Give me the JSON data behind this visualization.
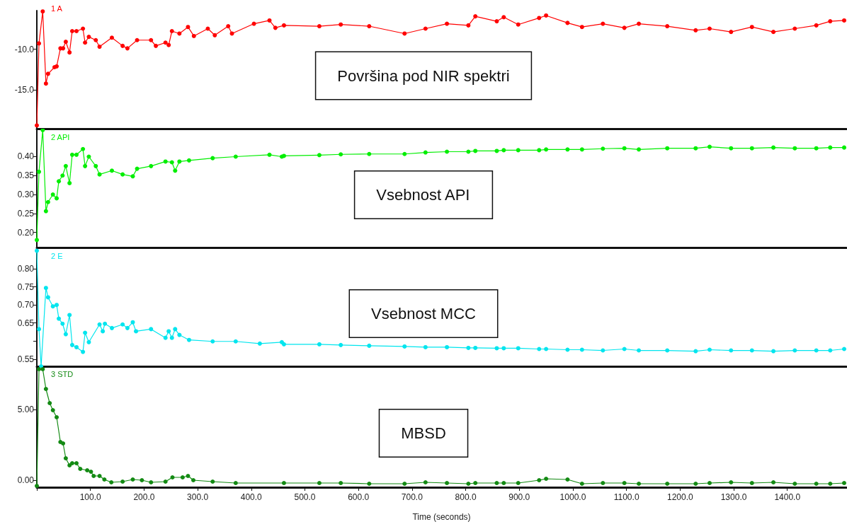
{
  "chart_data": [
    {
      "type": "line",
      "annotations": [
        "Površina pod NIR spektri"
      ],
      "legend": "top left",
      "marker": "circle",
      "tick_labels": "y",
      "x": [
        0,
        4,
        11,
        17,
        21,
        33,
        37,
        44,
        49,
        54,
        61,
        66,
        74,
        86,
        90,
        97,
        110,
        117,
        140,
        160,
        169,
        187,
        213,
        222,
        240,
        246,
        252,
        266,
        282,
        293,
        319,
        332,
        357,
        364,
        405,
        434,
        445,
        461,
        527,
        567,
        620,
        686,
        725,
        765,
        805,
        818,
        858,
        871,
        898,
        937,
        950,
        990,
        1017,
        1056,
        1096,
        1123,
        1176,
        1229,
        1255,
        1295,
        1334,
        1374,
        1414,
        1454,
        1480,
        1506
      ],
      "series": [
        {
          "name": "1 A",
          "color": "#ff0000",
          "values": [
            -19.3,
            -9.3,
            -5.4,
            -14.2,
            -13.0,
            -12.2,
            -12.1,
            -9.9,
            -9.9,
            -9.1,
            -10.4,
            -7.8,
            -7.8,
            -7.5,
            -9.2,
            -8.5,
            -8.9,
            -9.7,
            -8.6,
            -9.6,
            -9.9,
            -8.9,
            -8.9,
            -9.6,
            -9.2,
            -9.5,
            -7.8,
            -8.1,
            -7.3,
            -8.4,
            -7.5,
            -8.3,
            -7.2,
            -8.1,
            -6.9,
            -6.5,
            -7.4,
            -7.1,
            -7.2,
            -7.0,
            -7.2,
            -8.1,
            -7.5,
            -6.9,
            -7.1,
            -6.0,
            -6.6,
            -6.1,
            -7.0,
            -6.2,
            -5.9,
            -6.8,
            -7.3,
            -6.9,
            -7.4,
            -6.9,
            -7.2,
            -7.7,
            -7.5,
            -7.9,
            -7.3,
            -7.9,
            -7.5,
            -7.1,
            -6.6,
            -6.5
          ]
        }
      ],
      "xlim": [
        0,
        1510
      ],
      "ylim": [
        -19.7,
        -5.3
      ],
      "yticks": [
        {
          "value": -15,
          "label": "-15.0"
        },
        {
          "value": -10,
          "label": "-10.0"
        }
      ]
    },
    {
      "type": "line",
      "annotations": [
        "Vsebnost API"
      ],
      "legend": "top left",
      "marker": "circle",
      "tick_labels": "y",
      "x": [
        0,
        4,
        11,
        17,
        21,
        30,
        37,
        41,
        48,
        54,
        61,
        66,
        74,
        86,
        90,
        97,
        110,
        117,
        140,
        160,
        179,
        187,
        213,
        240,
        252,
        258,
        266,
        284,
        328,
        371,
        434,
        457,
        461,
        527,
        567,
        620,
        686,
        725,
        765,
        805,
        818,
        858,
        871,
        898,
        937,
        950,
        990,
        1017,
        1056,
        1096,
        1123,
        1176,
        1229,
        1255,
        1295,
        1334,
        1374,
        1414,
        1454,
        1480,
        1506
      ],
      "series": [
        {
          "name": "2 API",
          "color": "#00ee00",
          "values": [
            0.18,
            0.36,
            0.47,
            0.256,
            0.28,
            0.3,
            0.29,
            0.335,
            0.35,
            0.375,
            0.33,
            0.405,
            0.405,
            0.42,
            0.375,
            0.4,
            0.375,
            0.353,
            0.363,
            0.353,
            0.348,
            0.368,
            0.375,
            0.387,
            0.385,
            0.363,
            0.387,
            0.39,
            0.396,
            0.4,
            0.405,
            0.4,
            0.402,
            0.404,
            0.406,
            0.407,
            0.407,
            0.411,
            0.413,
            0.413,
            0.415,
            0.415,
            0.417,
            0.417,
            0.417,
            0.419,
            0.419,
            0.419,
            0.421,
            0.422,
            0.419,
            0.422,
            0.422,
            0.426,
            0.422,
            0.422,
            0.424,
            0.422,
            0.422,
            0.424,
            0.424
          ]
        }
      ],
      "xlim": [
        0,
        1510
      ],
      "ylim": [
        0.16,
        0.47
      ],
      "yticks": [
        {
          "value": 0.2,
          "label": "0.20"
        },
        {
          "value": 0.25,
          "label": "0.25"
        },
        {
          "value": 0.3,
          "label": "0.30"
        },
        {
          "value": 0.35,
          "label": "0.35"
        },
        {
          "value": 0.4,
          "label": "0.40"
        }
      ]
    },
    {
      "type": "line",
      "annotations": [
        "Vsebnost MCC"
      ],
      "legend": "top left",
      "marker": "circle",
      "tick_labels": "y",
      "x": [
        0,
        4,
        8,
        17,
        21,
        30,
        37,
        41,
        48,
        54,
        61,
        66,
        74,
        86,
        90,
        97,
        117,
        123,
        127,
        140,
        160,
        169,
        179,
        185,
        213,
        240,
        246,
        252,
        258,
        266,
        284,
        328,
        371,
        416,
        457,
        461,
        527,
        567,
        620,
        686,
        725,
        765,
        805,
        818,
        858,
        871,
        898,
        937,
        950,
        990,
        1017,
        1056,
        1096,
        1123,
        1176,
        1229,
        1255,
        1295,
        1334,
        1374,
        1414,
        1454,
        1480,
        1506
      ],
      "series": [
        {
          "name": "2 E",
          "color": "#00e5ee",
          "values": [
            0.85,
            0.633,
            0.53,
            0.747,
            0.721,
            0.696,
            0.7,
            0.662,
            0.648,
            0.619,
            0.672,
            0.589,
            0.583,
            0.57,
            0.623,
            0.597,
            0.646,
            0.627,
            0.648,
            0.636,
            0.646,
            0.636,
            0.652,
            0.627,
            0.633,
            0.609,
            0.627,
            0.609,
            0.633,
            0.617,
            0.603,
            0.599,
            0.599,
            0.593,
            0.597,
            0.591,
            0.591,
            0.589,
            0.587,
            0.585,
            0.583,
            0.583,
            0.581,
            0.581,
            0.58,
            0.58,
            0.58,
            0.578,
            0.578,
            0.576,
            0.576,
            0.574,
            0.578,
            0.574,
            0.574,
            0.572,
            0.576,
            0.574,
            0.574,
            0.572,
            0.574,
            0.574,
            0.574,
            0.578
          ]
        }
      ],
      "xlim": [
        0,
        1510
      ],
      "ylim": [
        0.53,
        0.855
      ],
      "yticks": [
        {
          "value": 0.55,
          "label": "0.55"
        },
        {
          "value": 0.6,
          "label": null
        },
        {
          "value": 0.65,
          "label": "0.65"
        },
        {
          "value": 0.7,
          "label": "0.70"
        },
        {
          "value": 0.75,
          "label": "0.75"
        },
        {
          "value": 0.8,
          "label": "0.80"
        }
      ]
    },
    {
      "type": "line",
      "annotations": [
        "MBSD"
      ],
      "legend": "top left",
      "marker": "circle",
      "xlabel": "Time (seconds)",
      "x": [
        0,
        4,
        11,
        17,
        24,
        30,
        37,
        44,
        49,
        54,
        61,
        66,
        74,
        81,
        94,
        101,
        106,
        117,
        126,
        139,
        160,
        179,
        196,
        213,
        240,
        253,
        272,
        282,
        292,
        328,
        371,
        461,
        527,
        567,
        620,
        686,
        725,
        765,
        805,
        818,
        858,
        871,
        898,
        937,
        950,
        990,
        1017,
        1056,
        1096,
        1123,
        1176,
        1229,
        1255,
        1295,
        1334,
        1374,
        1414,
        1454,
        1480,
        1506
      ],
      "series": [
        {
          "name": "3 STD",
          "color": "#138a13",
          "values": [
            -0.4,
            7.85,
            7.85,
            6.45,
            5.45,
            4.95,
            4.45,
            2.7,
            2.6,
            1.55,
            1.05,
            1.2,
            1.2,
            0.8,
            0.7,
            0.6,
            0.3,
            0.3,
            0.05,
            -0.15,
            -0.1,
            0.05,
            0,
            -0.15,
            -0.1,
            0.2,
            0.2,
            0.3,
            0,
            -0.1,
            -0.2,
            -0.2,
            -0.2,
            -0.2,
            -0.25,
            -0.25,
            -0.15,
            -0.2,
            -0.25,
            -0.2,
            -0.2,
            -0.2,
            -0.2,
            0,
            0.1,
            0.05,
            -0.25,
            -0.2,
            -0.2,
            -0.25,
            -0.25,
            -0.25,
            -0.2,
            -0.15,
            -0.2,
            -0.15,
            -0.25,
            -0.25,
            -0.25,
            -0.2
          ]
        }
      ],
      "xlim": [
        0,
        1510
      ],
      "xticks": [
        {
          "value": 0,
          "label": null
        },
        {
          "value": 100,
          "label": "100.0"
        },
        {
          "value": 200,
          "label": "200.0"
        },
        {
          "value": 300,
          "label": "300.0"
        },
        {
          "value": 400,
          "label": "400.0"
        },
        {
          "value": 500,
          "label": "500.0"
        },
        {
          "value": 600,
          "label": "600.0"
        },
        {
          "value": 700,
          "label": "700.0"
        },
        {
          "value": 800,
          "label": "800.0"
        },
        {
          "value": 900,
          "label": "900.0"
        },
        {
          "value": 1000,
          "label": "1000.0"
        },
        {
          "value": 1100,
          "label": "1100.0"
        },
        {
          "value": 1200,
          "label": "1200.0"
        },
        {
          "value": 1300,
          "label": "1300.0"
        },
        {
          "value": 1400,
          "label": "1400.0"
        }
      ],
      "ylim": [
        -0.5,
        8
      ],
      "yticks": [
        {
          "value": 0,
          "label": "0.00"
        },
        {
          "value": 5,
          "label": "5.00"
        }
      ]
    }
  ]
}
